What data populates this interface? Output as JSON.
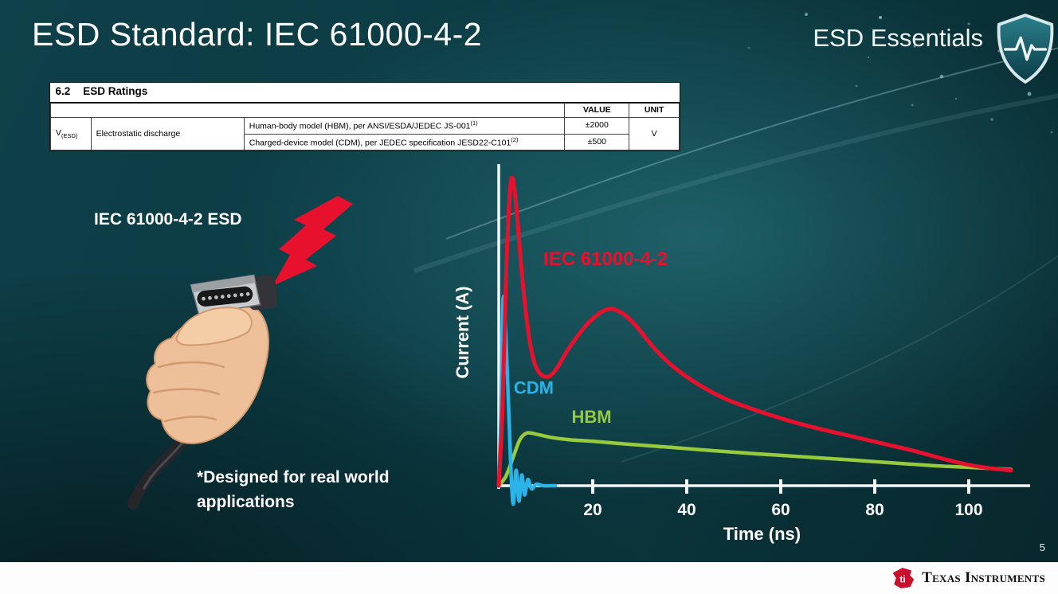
{
  "slide": {
    "title": "ESD Standard: IEC 61000-4-2",
    "brand": "ESD Essentials",
    "page_number": "5"
  },
  "ratings_table": {
    "section": "6.2",
    "section_title": "ESD Ratings",
    "col_value": "VALUE",
    "col_unit": "UNIT",
    "param_base": "V",
    "param_sub": "(ESD)",
    "param_desc": "Electrostatic discharge",
    "rows": [
      {
        "desc": "Human-body model (HBM), per ANSI/ESDA/JEDEC JS-001",
        "sup": "(1)",
        "value": "±2000"
      },
      {
        "desc": "Charged-device model (CDM), per JEDEC specification JESD22-C101",
        "sup": "(2)",
        "value": "±500"
      }
    ],
    "unit": "V"
  },
  "illustration": {
    "label": "IEC 61000-4-2 ESD",
    "note_line1": "*Designed for real world",
    "note_line2": "applications"
  },
  "chart_data": {
    "type": "line",
    "title": "",
    "xlabel": "Time (ns)",
    "ylabel": "Current (A)",
    "xlim": [
      0,
      110
    ],
    "ylim": [
      -0.08,
      1.05
    ],
    "xticks": [
      20,
      40,
      60,
      80,
      100
    ],
    "grid": false,
    "legend_position": "inline-labels",
    "series": [
      {
        "name": "IEC 61000-4-2",
        "color": "#e8112d",
        "points": [
          [
            0,
            0
          ],
          [
            0.8,
            0.25
          ],
          [
            1.6,
            0.7
          ],
          [
            2.4,
            0.96
          ],
          [
            3,
            1.0
          ],
          [
            3.8,
            0.9
          ],
          [
            5,
            0.68
          ],
          [
            6.5,
            0.48
          ],
          [
            8,
            0.385
          ],
          [
            10,
            0.355
          ],
          [
            12,
            0.375
          ],
          [
            15,
            0.45
          ],
          [
            19,
            0.53
          ],
          [
            23,
            0.575
          ],
          [
            26,
            0.565
          ],
          [
            29,
            0.525
          ],
          [
            33,
            0.45
          ],
          [
            37,
            0.39
          ],
          [
            42,
            0.335
          ],
          [
            48,
            0.285
          ],
          [
            54,
            0.25
          ],
          [
            60,
            0.22
          ],
          [
            67,
            0.19
          ],
          [
            74,
            0.165
          ],
          [
            81,
            0.14
          ],
          [
            88,
            0.115
          ],
          [
            94,
            0.09
          ],
          [
            100,
            0.068
          ],
          [
            105,
            0.056
          ],
          [
            109,
            0.05
          ]
        ]
      },
      {
        "name": "CDM",
        "color": "#2bb3e8",
        "points": [
          [
            0,
            0
          ],
          [
            0.4,
            0.2
          ],
          [
            0.9,
            0.6
          ],
          [
            1.4,
            0.52
          ],
          [
            2,
            0.3
          ],
          [
            2.6,
            0.05
          ],
          [
            3.1,
            -0.06
          ],
          [
            3.7,
            0.05
          ],
          [
            4.3,
            -0.05
          ],
          [
            4.9,
            0.035
          ],
          [
            5.5,
            -0.03
          ],
          [
            6.2,
            0.02
          ],
          [
            7,
            -0.01
          ],
          [
            8,
            0.005
          ],
          [
            9.5,
            0
          ],
          [
            12,
            0
          ]
        ]
      },
      {
        "name": "HBM",
        "color": "#97ca3d",
        "points": [
          [
            0,
            0
          ],
          [
            1.5,
            0.03
          ],
          [
            3,
            0.09
          ],
          [
            4.5,
            0.15
          ],
          [
            6,
            0.172
          ],
          [
            8,
            0.168
          ],
          [
            11,
            0.158
          ],
          [
            15,
            0.15
          ],
          [
            20,
            0.145
          ],
          [
            27,
            0.136
          ],
          [
            35,
            0.127
          ],
          [
            45,
            0.115
          ],
          [
            55,
            0.104
          ],
          [
            65,
            0.094
          ],
          [
            75,
            0.084
          ],
          [
            85,
            0.073
          ],
          [
            93,
            0.065
          ],
          [
            100,
            0.06
          ],
          [
            105,
            0.056
          ],
          [
            109,
            0.053
          ]
        ]
      }
    ],
    "labels": [
      {
        "text": "IEC 61000-4-2",
        "color": "#e8112d",
        "x": 9.5,
        "y": 0.72
      },
      {
        "text": "CDM",
        "color": "#2bb3e8",
        "x": 3.2,
        "y": 0.3
      },
      {
        "text": "HBM",
        "color": "#97ca3d",
        "x": 15.5,
        "y": 0.205
      }
    ]
  },
  "footer": {
    "logo_mark": "ti",
    "logo_text": "Texas Instruments"
  }
}
